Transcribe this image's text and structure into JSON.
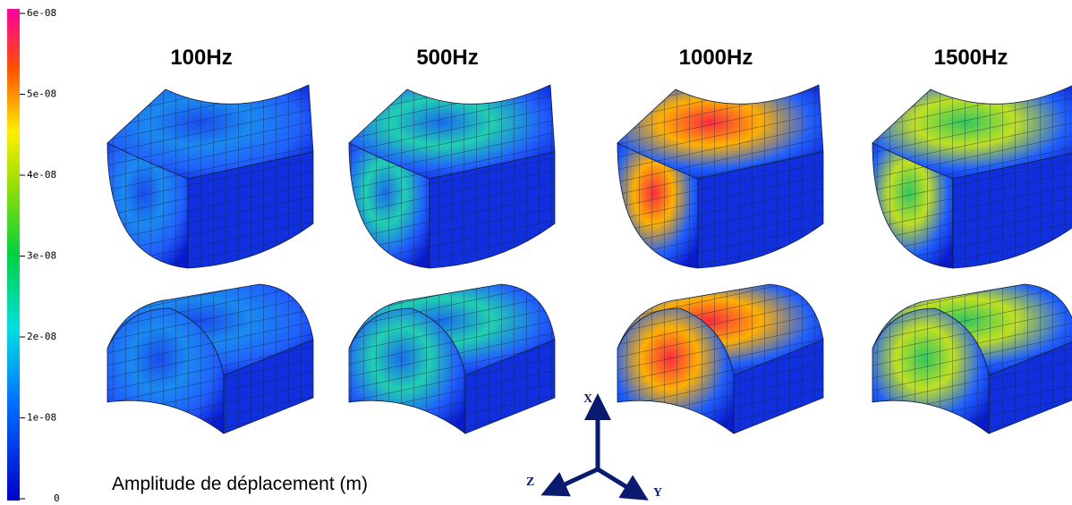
{
  "colorbar": {
    "ticks": [
      "6e-08",
      "5e-08",
      "4e-08",
      "3e-08",
      "2e-08",
      "1e-08",
      "0"
    ]
  },
  "frequencies": [
    "100Hz",
    "500Hz",
    "1000Hz",
    "1500Hz"
  ],
  "caption": "Amplitude de déplacement  (m)",
  "triad": {
    "x": "X",
    "y": "Y",
    "z": "Z"
  }
}
